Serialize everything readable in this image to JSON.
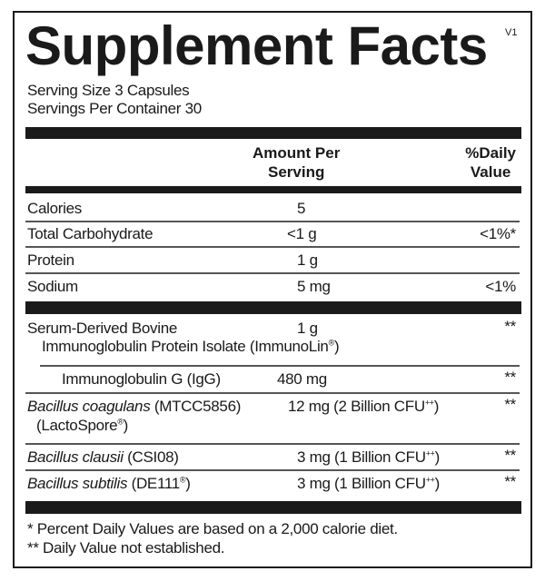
{
  "title": "Supplement Facts",
  "version": "V1",
  "serving_size": "Serving Size  3 Capsules",
  "servings_per_container": "Servings Per Container  30",
  "header": {
    "amount_line1": "Amount Per",
    "amount_line2": "Serving",
    "dv_line1": "%Daily",
    "dv_line2": "Value"
  },
  "nutrients": [
    {
      "name": "Calories",
      "amount": "5",
      "dv": ""
    },
    {
      "name": "Total Carbohydrate",
      "amount": "<1 g",
      "dv": "<1%*"
    },
    {
      "name": "Protein",
      "amount": "1 g",
      "dv": ""
    },
    {
      "name": "Sodium",
      "amount": "5 mg",
      "dv": "<1%"
    }
  ],
  "ingredients": [
    {
      "name_line1": "Serum-Derived Bovine",
      "name_line2": "Immunoglobulin Protein Isolate (ImmunoLin",
      "mark": "®",
      "name_line2_end": ")",
      "amount": "1 g",
      "dv": "**"
    },
    {
      "name": "Immunoglobulin G (IgG)",
      "amount": "480 mg",
      "dv": "**"
    },
    {
      "name_italic": "Bacillus coagulans",
      "name_rest": " (MTCC5856)",
      "name_line2": "(LactoSpore",
      "mark": "®",
      "name_line2_end": ")",
      "amount": "12 mg (2 Billion CFU",
      "amount_mark": "++",
      "amount_end": ")",
      "dv": "**"
    },
    {
      "name_italic": "Bacillus clausii",
      "name_rest": " (CSI08)",
      "amount": "3 mg (1 Billion CFU",
      "amount_mark": "++",
      "amount_end": ")",
      "dv": "**"
    },
    {
      "name_italic": "Bacillus subtilis",
      "name_rest": " (DE111",
      "mark": "®",
      "name_end": ")",
      "amount": "3 mg (1 Billion CFU",
      "amount_mark": "++",
      "amount_end": ")",
      "dv": "**"
    }
  ],
  "footnotes": [
    "* Percent Daily Values are based on a 2,000 calorie diet.",
    "** Daily Value not established."
  ]
}
